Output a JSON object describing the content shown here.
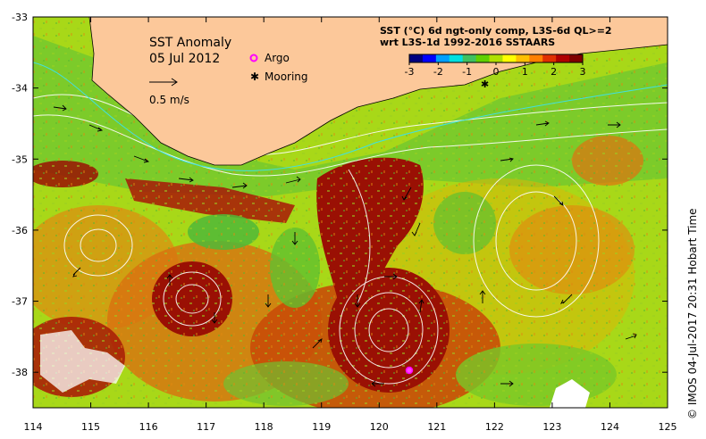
{
  "map": {
    "title": "SST Anomaly",
    "date": "05 Jul 2012",
    "velocity_scale_label": "0.5 m/s",
    "legend": [
      {
        "name": "Argo",
        "symbol": "magenta-circle",
        "color": "#ff00ff"
      },
      {
        "name": "Mooring",
        "symbol": "black-star",
        "color": "#000000"
      }
    ]
  },
  "colorbar": {
    "title_line1": "SST (°C) 6d ngt-only comp, L3S-6d QL>=2",
    "title_line2": "wrt L3S-1d 1992-2016 SSTAARS",
    "ticks": [
      "-3",
      "-2",
      "-1",
      "0",
      "1",
      "2",
      "3"
    ],
    "colors": [
      "#000080",
      "#0000ff",
      "#00a0ff",
      "#00e0e0",
      "#40c060",
      "#60d000",
      "#b0e000",
      "#ffff00",
      "#ffc000",
      "#ff8000",
      "#e03000",
      "#b00000",
      "#800000"
    ]
  },
  "axes": {
    "lon_ticks": [
      "114",
      "115",
      "116",
      "117",
      "118",
      "119",
      "120",
      "121",
      "122",
      "123",
      "124",
      "125"
    ],
    "lat_ticks": [
      "-33",
      "-34",
      "-35",
      "-36",
      "-37",
      "-38"
    ],
    "lon_range": [
      114,
      125
    ],
    "lat_range": [
      -38.5,
      -33
    ]
  },
  "credit": "© IMOS 04-Jul-2017 20:31 Hobart Time",
  "colors": {
    "land": "#fcc89a",
    "anomaly_warm": "#9a1004",
    "anomaly_orange": "#d86a10",
    "anomaly_yellow": "#e4d000",
    "anomaly_green": "#60c030"
  }
}
